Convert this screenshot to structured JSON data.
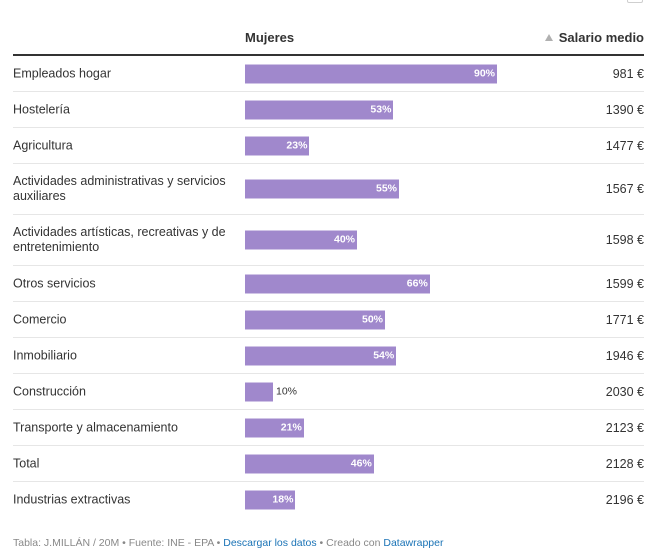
{
  "header": {
    "bar_column": "Mujeres",
    "value_column": "Salario medio"
  },
  "chart_data": {
    "type": "table",
    "columns": [
      "",
      "Mujeres",
      "Salario medio"
    ],
    "bar_color": "#a088cc",
    "bar_max": 100,
    "sorted_by": "Salario medio",
    "sort_direction": "ascending",
    "rows": [
      {
        "label": "Empleados hogar",
        "pct": 90,
        "pct_label": "90%",
        "salary": "981 €"
      },
      {
        "label": "Hostelería",
        "pct": 53,
        "pct_label": "53%",
        "salary": "1390 €"
      },
      {
        "label": "Agricultura",
        "pct": 23,
        "pct_label": "23%",
        "salary": "1477 €"
      },
      {
        "label": "Actividades administrativas y servicios auxiliares",
        "pct": 55,
        "pct_label": "55%",
        "salary": "1567 €"
      },
      {
        "label": "Actividades artísticas, recreativas y de entretenimiento",
        "pct": 40,
        "pct_label": "40%",
        "salary": "1598 €"
      },
      {
        "label": "Otros servicios",
        "pct": 66,
        "pct_label": "66%",
        "salary": "1599 €"
      },
      {
        "label": "Comercio",
        "pct": 50,
        "pct_label": "50%",
        "salary": "1771 €"
      },
      {
        "label": "Inmobiliario",
        "pct": 54,
        "pct_label": "54%",
        "salary": "1946 €"
      },
      {
        "label": "Construcción",
        "pct": 10,
        "pct_label": "10%",
        "salary": "2030 €"
      },
      {
        "label": "Transporte y almacenamiento",
        "pct": 21,
        "pct_label": "21%",
        "salary": "2123 €"
      },
      {
        "label": "Total",
        "pct": 46,
        "pct_label": "46%",
        "salary": "2128 €"
      },
      {
        "label": "Industrias extractivas",
        "pct": 18,
        "pct_label": "18%",
        "salary": "2196 €"
      }
    ]
  },
  "footer": {
    "prefix": "Tabla: J.MILLÁN / 20M • Fuente: INE - EPA • ",
    "download_link": "Descargar los datos",
    "middle": " • Creado con ",
    "tool_link": "Datawrapper"
  }
}
